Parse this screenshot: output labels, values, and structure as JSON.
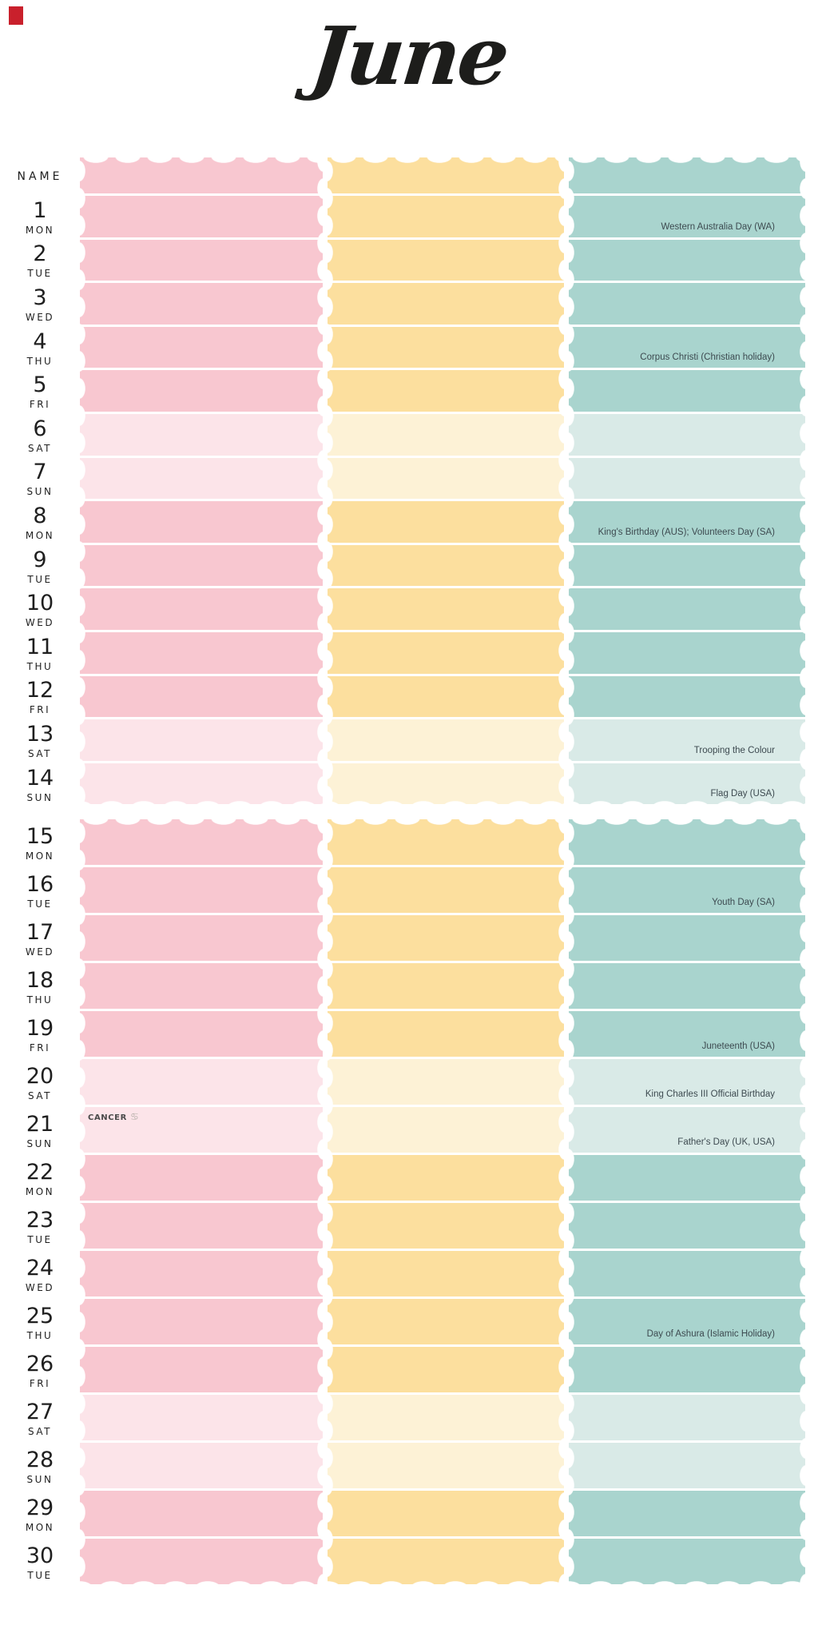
{
  "title": "June",
  "header": {
    "name_label": "NAME"
  },
  "marker_icon": "red-square",
  "colors": {
    "pink": "#f8c7d0",
    "pink_weekend": "#fce4e9",
    "yellow": "#fcdf9e",
    "yellow_weekend": "#fdf2d6",
    "teal": "#a9d4ce",
    "teal_weekend": "#d9eae7",
    "day_number": "#1f1f1f",
    "holiday_text": "#3d4a50",
    "title_text": "#1d1d1b",
    "marker": "#c9202c"
  },
  "days": [
    {
      "day": 1,
      "weekday": "MON",
      "weekend": false,
      "holiday": "Western Australia Day (WA)"
    },
    {
      "day": 2,
      "weekday": "TUE",
      "weekend": false,
      "holiday": ""
    },
    {
      "day": 3,
      "weekday": "WED",
      "weekend": false,
      "holiday": ""
    },
    {
      "day": 4,
      "weekday": "THU",
      "weekend": false,
      "holiday": "Corpus Christi (Christian holiday)"
    },
    {
      "day": 5,
      "weekday": "FRI",
      "weekend": false,
      "holiday": ""
    },
    {
      "day": 6,
      "weekday": "SAT",
      "weekend": true,
      "holiday": ""
    },
    {
      "day": 7,
      "weekday": "SUN",
      "weekend": true,
      "holiday": ""
    },
    {
      "day": 8,
      "weekday": "MON",
      "weekend": false,
      "holiday": "King's Birthday (AUS); Volunteers Day (SA)"
    },
    {
      "day": 9,
      "weekday": "TUE",
      "weekend": false,
      "holiday": ""
    },
    {
      "day": 10,
      "weekday": "WED",
      "weekend": false,
      "holiday": ""
    },
    {
      "day": 11,
      "weekday": "THU",
      "weekend": false,
      "holiday": ""
    },
    {
      "day": 12,
      "weekday": "FRI",
      "weekend": false,
      "holiday": ""
    },
    {
      "day": 13,
      "weekday": "SAT",
      "weekend": true,
      "holiday": "Trooping the Colour"
    },
    {
      "day": 14,
      "weekday": "SUN",
      "weekend": true,
      "holiday": "Flag Day (USA)"
    },
    {
      "day": 15,
      "weekday": "MON",
      "weekend": false,
      "holiday": ""
    },
    {
      "day": 16,
      "weekday": "TUE",
      "weekend": false,
      "holiday": "Youth Day (SA)"
    },
    {
      "day": 17,
      "weekday": "WED",
      "weekend": false,
      "holiday": ""
    },
    {
      "day": 18,
      "weekday": "THU",
      "weekend": false,
      "holiday": ""
    },
    {
      "day": 19,
      "weekday": "FRI",
      "weekend": false,
      "holiday": "Juneteenth (USA)"
    },
    {
      "day": 20,
      "weekday": "SAT",
      "weekend": true,
      "holiday": "King Charles III Official Birthday"
    },
    {
      "day": 21,
      "weekday": "SUN",
      "weekend": true,
      "holiday": "Father's Day (UK, USA)",
      "zodiac": "CANCER",
      "zodiac_symbol": "♋"
    },
    {
      "day": 22,
      "weekday": "MON",
      "weekend": false,
      "holiday": ""
    },
    {
      "day": 23,
      "weekday": "TUE",
      "weekend": false,
      "holiday": ""
    },
    {
      "day": 24,
      "weekday": "WED",
      "weekend": false,
      "holiday": ""
    },
    {
      "day": 25,
      "weekday": "THU",
      "weekend": false,
      "holiday": "Day of Ashura (Islamic Holiday)"
    },
    {
      "day": 26,
      "weekday": "FRI",
      "weekend": false,
      "holiday": ""
    },
    {
      "day": 27,
      "weekday": "SAT",
      "weekend": true,
      "holiday": ""
    },
    {
      "day": 28,
      "weekday": "SUN",
      "weekend": true,
      "holiday": ""
    },
    {
      "day": 29,
      "weekday": "MON",
      "weekend": false,
      "holiday": ""
    },
    {
      "day": 30,
      "weekday": "TUE",
      "weekend": false,
      "holiday": ""
    }
  ]
}
